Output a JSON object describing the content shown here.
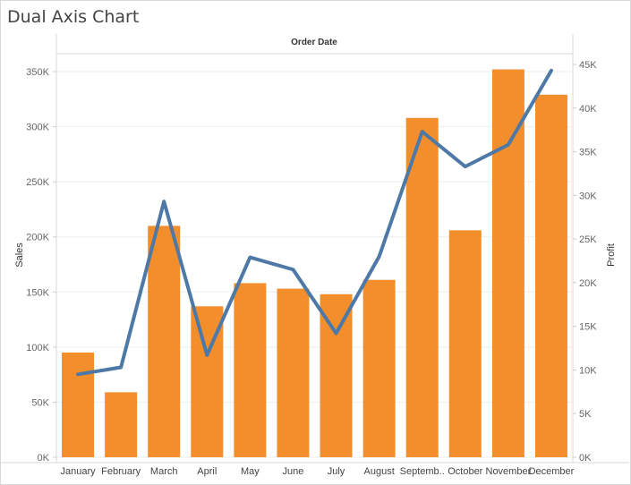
{
  "title": "Dual Axis Chart",
  "chart_data": {
    "type": "bar+line",
    "header": "Order Date",
    "categories": [
      "January",
      "February",
      "March",
      "April",
      "May",
      "June",
      "July",
      "August",
      "Septemb..",
      "October",
      "November",
      "December"
    ],
    "series": [
      {
        "name": "Sales",
        "type": "bar",
        "axis": "left",
        "color": "#f28e2b",
        "values": [
          95000,
          59000,
          210000,
          137000,
          158000,
          153000,
          148000,
          161000,
          308000,
          206000,
          352000,
          329000
        ]
      },
      {
        "name": "Profit",
        "type": "line",
        "axis": "right",
        "color": "#4e79a7",
        "values": [
          9500,
          10300,
          29300,
          11700,
          22900,
          21500,
          14200,
          23000,
          37300,
          33300,
          35800,
          44300
        ]
      }
    ],
    "y_left": {
      "label": "Sales",
      "min": 0,
      "max": 350000,
      "ticks": [
        {
          "v": 0,
          "t": "0K"
        },
        {
          "v": 50000,
          "t": "50K"
        },
        {
          "v": 100000,
          "t": "100K"
        },
        {
          "v": 150000,
          "t": "150K"
        },
        {
          "v": 200000,
          "t": "200K"
        },
        {
          "v": 250000,
          "t": "250K"
        },
        {
          "v": 300000,
          "t": "300K"
        },
        {
          "v": 350000,
          "t": "350K"
        }
      ]
    },
    "y_right": {
      "label": "Profit",
      "min": 0,
      "max": 45000,
      "ticks": [
        {
          "v": 0,
          "t": "0K"
        },
        {
          "v": 5000,
          "t": "5K"
        },
        {
          "v": 10000,
          "t": "10K"
        },
        {
          "v": 15000,
          "t": "15K"
        },
        {
          "v": 20000,
          "t": "20K"
        },
        {
          "v": 25000,
          "t": "25K"
        },
        {
          "v": 30000,
          "t": "30K"
        },
        {
          "v": 35000,
          "t": "35K"
        },
        {
          "v": 40000,
          "t": "40K"
        },
        {
          "v": 45000,
          "t": "45K"
        }
      ]
    },
    "grid": true,
    "legend": "none"
  }
}
